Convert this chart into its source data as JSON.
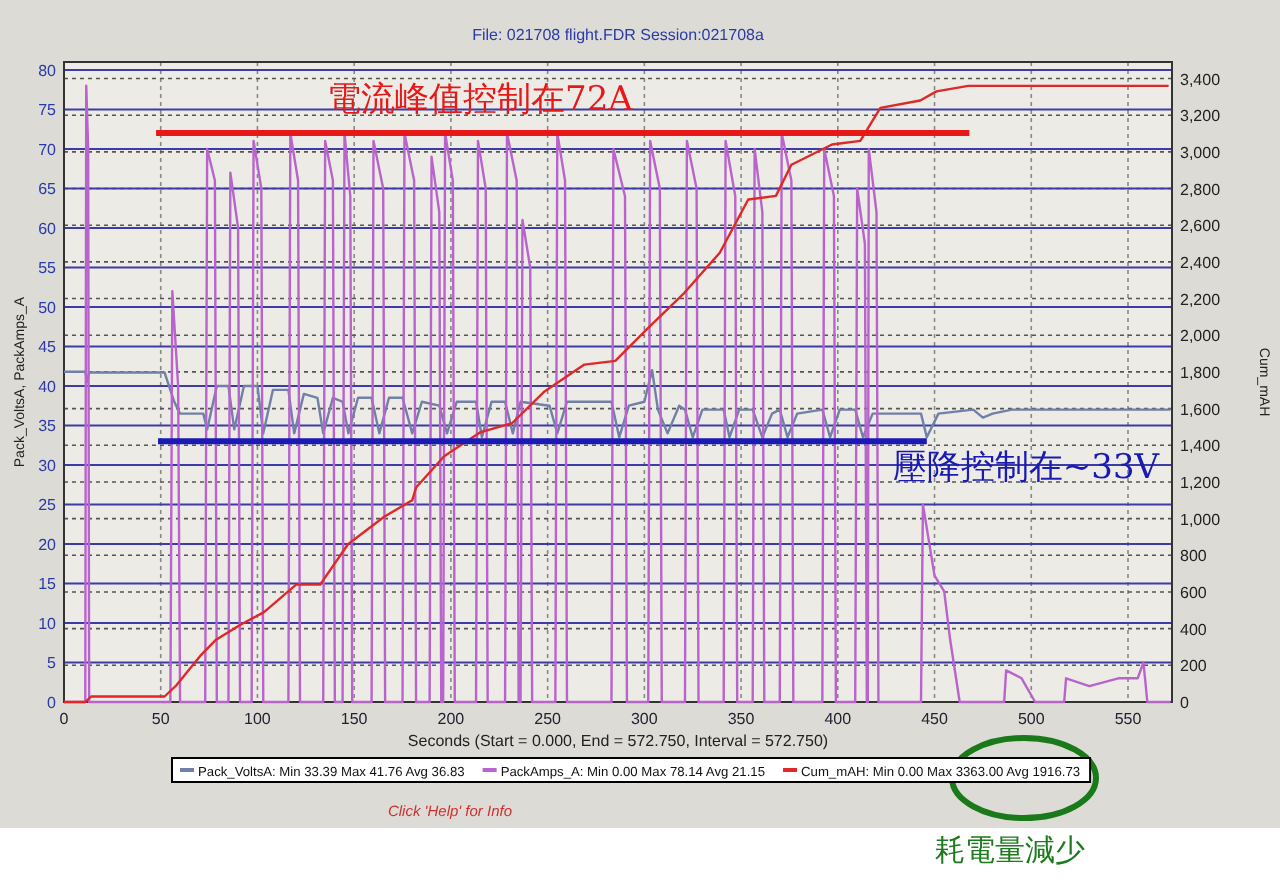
{
  "chart_data": {
    "type": "line",
    "title": "File: 021708 flight.FDR   Session:021708a",
    "xlabel": "Seconds (Start = 0.000,  End = 572.750,  Interval = 572.750)",
    "ylabel": "Pack_VoltsA, PackAmps_A",
    "y2label": "Cum_mAH",
    "xlim": [
      0,
      572.75
    ],
    "xticks": [
      0,
      50,
      100,
      150,
      200,
      250,
      300,
      350,
      400,
      450,
      500,
      550
    ],
    "ylim": [
      0,
      81
    ],
    "yticks": [
      0,
      5,
      10,
      15,
      20,
      25,
      30,
      35,
      40,
      45,
      50,
      55,
      60,
      65,
      70,
      75,
      80
    ],
    "y2lim": [
      0,
      3490
    ],
    "y2ticks": [
      0,
      {
        "value": 200,
        "label": "200"
      },
      {
        "value": 400,
        "label": "400"
      },
      {
        "value": 600,
        "label": "600"
      },
      {
        "value": 800,
        "label": "800"
      },
      {
        "value": 1000,
        "label": "1,000"
      },
      {
        "value": 1200,
        "label": "1,200"
      },
      {
        "value": 1400,
        "label": "1,400"
      },
      {
        "value": 1600,
        "label": "1,600"
      },
      {
        "value": 1800,
        "label": "1,800"
      },
      {
        "value": 2000,
        "label": "2,000"
      },
      {
        "value": 2200,
        "label": "2,200"
      },
      {
        "value": 2400,
        "label": "2,400"
      },
      {
        "value": 2600,
        "label": "2,600"
      },
      {
        "value": 2800,
        "label": "2,800"
      },
      {
        "value": 3000,
        "label": "3,000"
      },
      {
        "value": 3200,
        "label": "3,200"
      },
      {
        "value": 3400,
        "label": "3,400"
      }
    ],
    "grid": true,
    "legend": "bottom",
    "marker": "none",
    "line_style": "solid",
    "series": [
      {
        "name": "Pack_VoltsA:  Min 33.39   Max 41.76   Avg 36.83",
        "color": "#7080a8",
        "x": [
          0,
          11,
          12,
          13,
          52,
          57,
          60,
          72,
          74,
          79,
          85,
          88,
          93,
          100,
          103,
          108,
          116,
          119,
          124,
          131,
          134,
          139,
          144,
          147,
          152,
          159,
          163,
          168,
          175,
          180,
          185,
          194,
          198,
          203,
          213,
          216,
          221,
          228,
          232,
          236,
          251,
          255,
          260,
          283,
          287,
          292,
          300,
          304,
          307,
          312,
          318,
          321,
          325,
          330,
          341,
          344,
          349,
          356,
          361,
          366,
          370,
          374,
          379,
          392,
          396,
          401,
          409,
          413,
          418,
          421,
          443,
          446,
          452,
          470,
          475,
          480,
          490,
          572
        ],
        "values": [
          41.8,
          41.8,
          40.5,
          41.7,
          41.7,
          38,
          36.5,
          36.5,
          34.5,
          40,
          40,
          34.5,
          40,
          40,
          34,
          39.5,
          39.5,
          34,
          39,
          38.5,
          34,
          38.5,
          38,
          34,
          38.5,
          38.5,
          34,
          38.5,
          38.5,
          34,
          38,
          37.5,
          34,
          38,
          38,
          33.5,
          38,
          38,
          34,
          38,
          37.5,
          34,
          38,
          38,
          33.5,
          37.5,
          38,
          42,
          37,
          34,
          37.5,
          37,
          33.5,
          37,
          37,
          33.5,
          37,
          37,
          33.5,
          36.5,
          37,
          33.5,
          36.5,
          37,
          33.5,
          37,
          37,
          33.5,
          36.5,
          36.5,
          36.5,
          33.5,
          36.5,
          37,
          36,
          36.5,
          37,
          37
        ]
      },
      {
        "name": "PackAmps_A:  Min 0.00   Max 78.14   Avg 21.15",
        "color": "#b864cc",
        "x": [
          0,
          11,
          11.5,
          12.5,
          13,
          55,
          56,
          59,
          60,
          73,
          74,
          78,
          79,
          85,
          86,
          90,
          91,
          97,
          98,
          102,
          103,
          116,
          117,
          121,
          122,
          134,
          135,
          139,
          140,
          144,
          145,
          148,
          149,
          159,
          160,
          165,
          166,
          175,
          176,
          181,
          182,
          189,
          190,
          194,
          195,
          196,
          197,
          201,
          202,
          213,
          214,
          218,
          219,
          228,
          229,
          234,
          235,
          236,
          237,
          241,
          242,
          254,
          255,
          259,
          260,
          283,
          284,
          290,
          291,
          302,
          303,
          308,
          309,
          321,
          322,
          327,
          328,
          341,
          342,
          347,
          348,
          356,
          357,
          361,
          362,
          370,
          371,
          376,
          377,
          392,
          393,
          398,
          399,
          409,
          410,
          414,
          415,
          415.5,
          416,
          420,
          421,
          443,
          444,
          450,
          455,
          458,
          463,
          486,
          487,
          495,
          502,
          517,
          518,
          530,
          545,
          555,
          558,
          560,
          572
        ],
        "values": [
          0,
          0,
          78,
          70,
          0,
          0,
          52,
          40,
          0,
          0,
          70,
          66,
          0,
          0,
          67,
          60,
          0,
          0,
          71,
          65,
          0,
          0,
          72,
          66,
          0,
          0,
          71,
          66,
          0,
          0,
          72,
          64,
          0,
          0,
          71,
          65,
          0,
          0,
          72,
          66,
          0,
          0,
          69,
          62,
          0,
          0,
          72,
          66,
          0,
          0,
          71,
          65,
          0,
          0,
          72,
          66,
          0,
          0,
          61,
          55,
          0,
          0,
          72,
          66,
          0,
          0,
          70,
          64,
          0,
          0,
          71,
          65,
          0,
          0,
          71,
          65,
          0,
          0,
          71,
          64,
          0,
          0,
          70,
          62,
          0,
          0,
          72,
          66,
          0,
          0,
          70,
          64,
          0,
          0,
          65,
          58,
          0,
          0,
          70,
          62,
          0,
          0,
          25,
          16,
          14,
          8,
          0,
          0,
          4,
          3,
          0,
          0,
          3,
          2,
          3,
          3,
          5,
          0,
          0
        ]
      },
      {
        "name": "Cum_mAH:  Min 0.00   Max 3363.00   Avg 1916.73",
        "color": "#e02828",
        "axis": "y2",
        "x": [
          0,
          11,
          14,
          52,
          58,
          70.3,
          78.6,
          91,
          103.4,
          120,
          132.4,
          146.8,
          165.5,
          180,
          182,
          196.5,
          215,
          231.6,
          248,
          269,
          285,
          302,
          320.6,
          339,
          353.7,
          368,
          376,
          397,
          411.6,
          422,
          442.6,
          451,
          467.4,
          504.6,
          571
        ],
        "values": [
          0,
          0,
          30,
          30,
          90,
          250,
          340,
          420,
          490,
          640,
          640,
          860,
          1010,
          1100,
          1170,
          1340,
          1470,
          1520,
          1690,
          1840,
          1860,
          2040,
          2230,
          2450,
          2740,
          2760,
          2930,
          3040,
          3060,
          3240,
          3280,
          3330,
          3360,
          3360,
          3360
        ]
      },
      {
        "color": "#e81818",
        "x": [
          47.6,
          468
        ],
        "values": [
          72,
          72
        ]
      },
      {
        "color": "#1a1ab4",
        "x": [
          48.6,
          446
        ],
        "values": [
          33,
          33
        ]
      }
    ],
    "annotations": [
      "電流峰值控制在72A",
      "壓降控制在~33V",
      "Click 'Help' for Info",
      "耗電量減少"
    ]
  }
}
